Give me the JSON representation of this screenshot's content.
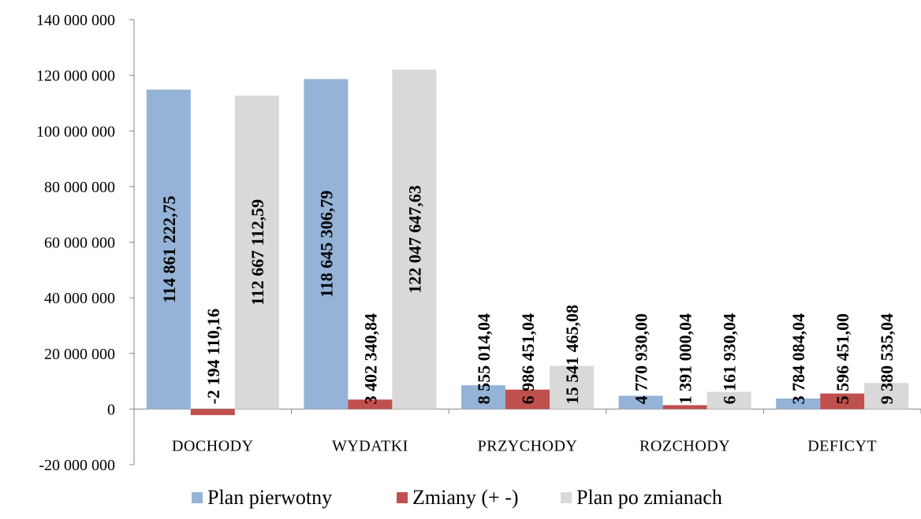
{
  "chart_data": {
    "type": "bar",
    "categories": [
      "DOCHODY",
      "WYDATKI",
      "PRZYCHODY",
      "ROZCHODY",
      "DEFICYT"
    ],
    "series": [
      {
        "name": "Plan pierwotny",
        "color": "#95B3D7",
        "values": [
          114861222.75,
          118645306.79,
          8555014.04,
          4770930.0,
          3784084.04
        ],
        "labels": [
          "114 861 222,75",
          "118 645 306,79",
          "8 555 014,04",
          "4 770 930,00",
          "3 784 084,04"
        ]
      },
      {
        "name": "Zmiany (+ -)",
        "color": "#C0504D",
        "values": [
          -2194110.16,
          3402340.84,
          6986451.04,
          1391000.04,
          5596451.0
        ],
        "labels": [
          "-2 194 110,16",
          "3 402 340,84",
          "6 986 451,04",
          "1 391 000,04",
          "5 596 451,00"
        ]
      },
      {
        "name": "Plan po zmianach",
        "color": "#D9D9D9",
        "values": [
          112667112.59,
          122047647.63,
          15541465.08,
          6161930.04,
          9380535.04
        ],
        "labels": [
          "112 667 112,59",
          "122 047 647,63",
          "15 541 465,08",
          "6 161 930,04",
          "9 380 535,04"
        ]
      }
    ],
    "ylim": [
      -20000000,
      140000000
    ],
    "yticks": [
      -20000000,
      0,
      20000000,
      40000000,
      60000000,
      80000000,
      100000000,
      120000000,
      140000000
    ],
    "ytick_labels": [
      "-20 000 000",
      "0",
      "20 000 000",
      "40 000 000",
      "60 000 000",
      "80 000 000",
      "100 000 000",
      "120 000 000",
      "140 000 000"
    ],
    "xlabel": "",
    "ylabel": "",
    "title": "",
    "grid": false,
    "legend_position": "bottom"
  }
}
